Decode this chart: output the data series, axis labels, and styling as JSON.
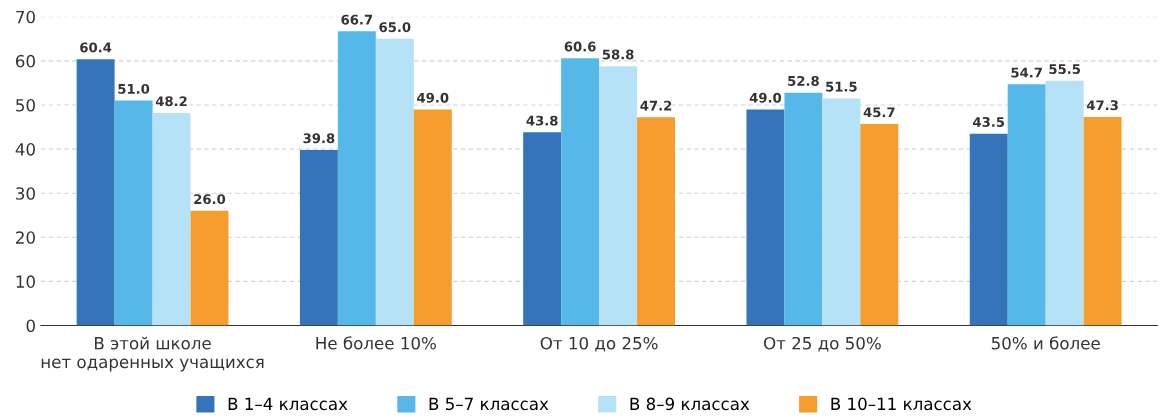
{
  "chart_data": {
    "type": "bar",
    "categories": [
      "В этой школе\nнет одаренных учащихся",
      "Не более 10%",
      "От 10 до 25%",
      "От 25 до 50%",
      "50% и более"
    ],
    "series": [
      {
        "name": "В 1–4 классах",
        "color": "#3574bb",
        "values": [
          60.4,
          39.8,
          43.8,
          49,
          43.5
        ],
        "value_labels": [
          "60.4",
          "39.8",
          "43.8",
          "49.0",
          "43.5"
        ]
      },
      {
        "name": "В 5–7 классах",
        "color": "#55b8e8",
        "values": [
          51,
          66.7,
          60.6,
          52.8,
          54.7
        ],
        "value_labels": [
          "51.0",
          "66.7",
          "60.6",
          "52.8",
          "54.7"
        ]
      },
      {
        "name": "В 8–9 классах",
        "color": "#b5e2f7",
        "values": [
          48.2,
          65,
          58.8,
          51.5,
          55.5
        ],
        "value_labels": [
          "48.2",
          "65.0",
          "58.8",
          "51.5",
          "55.5"
        ]
      },
      {
        "name": "В 10–11 классах",
        "color": "#f59d2e",
        "values": [
          26,
          49,
          47.2,
          45.7,
          47.3
        ],
        "value_labels": [
          "26.0",
          "49.0",
          "47.2",
          "45.7",
          "47.3"
        ]
      }
    ],
    "ylim": [
      0,
      70
    ],
    "yticks": [
      0,
      10,
      20,
      30,
      40,
      50,
      60,
      70
    ],
    "grid": "y",
    "legend": "bottom"
  }
}
